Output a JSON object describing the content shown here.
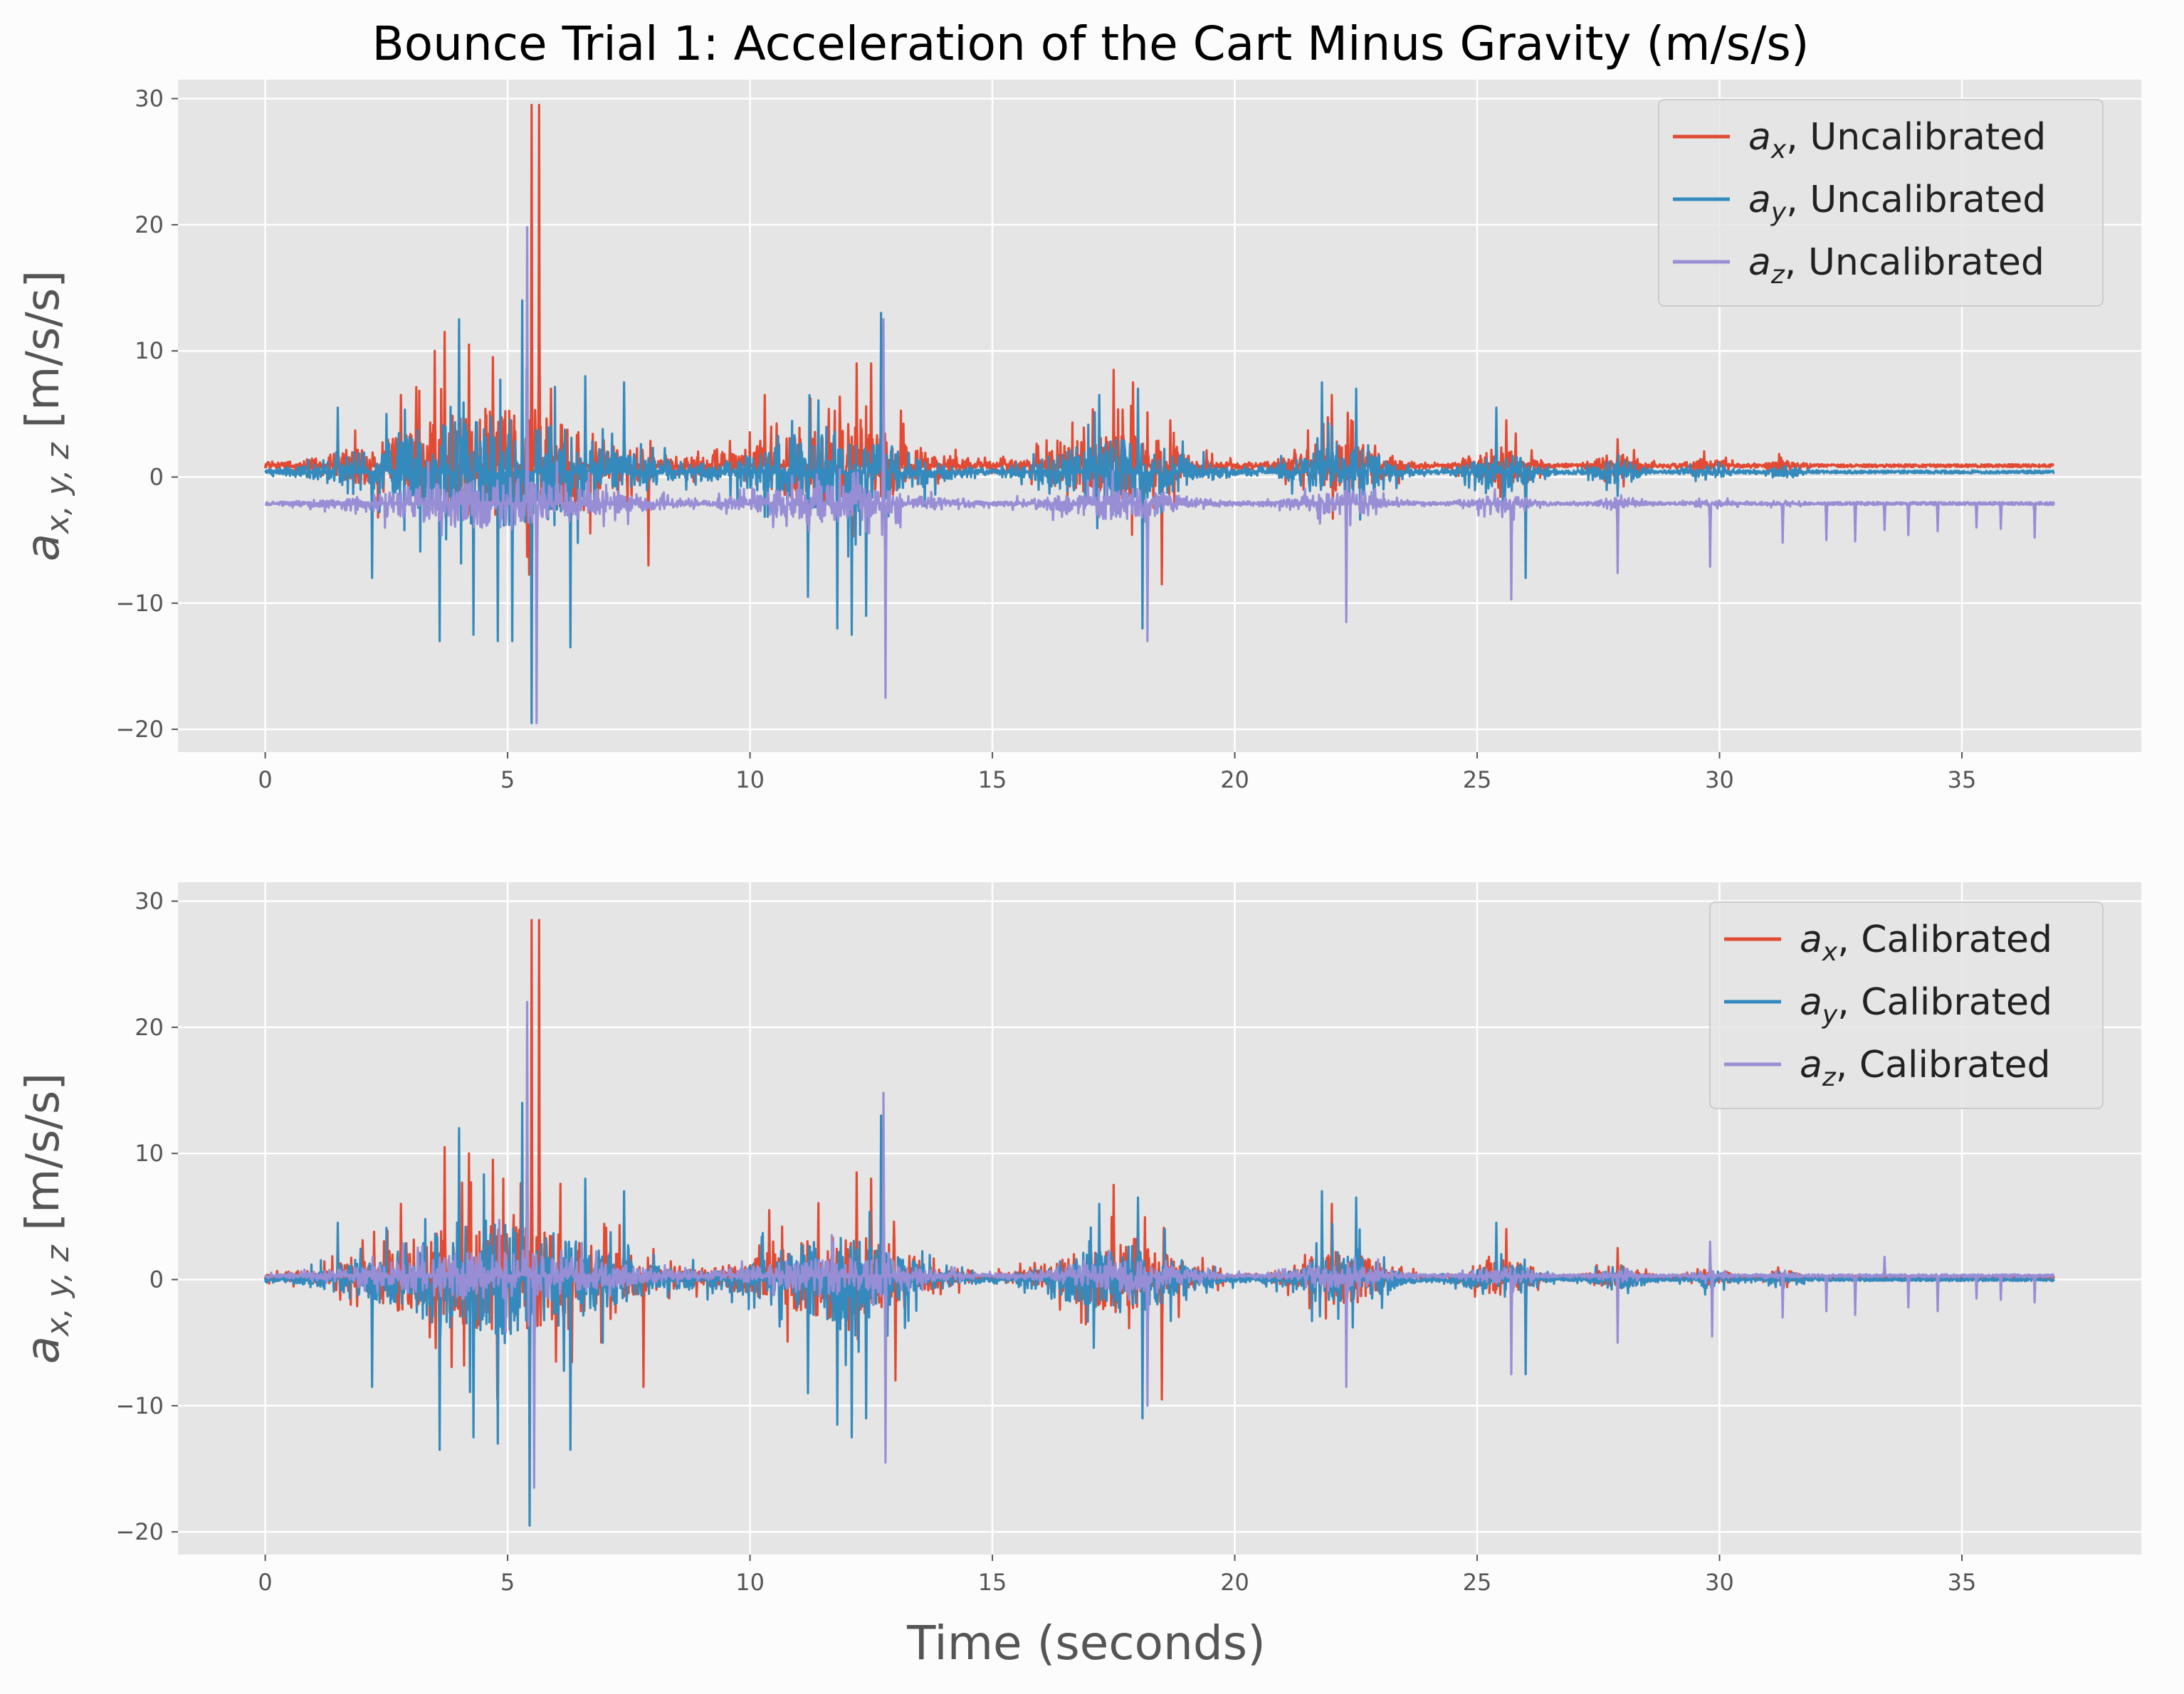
{
  "colors": {
    "figure_bg": "#fcfcfc",
    "axes_bg": "#e5e5e5",
    "grid": "#ffffff",
    "ax": "#e24a33",
    "ay": "#348abd",
    "az": "#988ed5"
  },
  "chart_data": [
    {
      "type": "line",
      "title": "Bounce Trial 1: Acceleration of the Cart Minus Gravity (m/s/s)",
      "xlabel": "",
      "ylabel": "a_{x,y,z} [m/s/s]",
      "xlim": [
        -1.8,
        38.7
      ],
      "ylim": [
        -21.8,
        31.5
      ],
      "xticks": [
        0,
        5,
        10,
        15,
        20,
        25,
        30,
        35
      ],
      "yticks": [
        -20,
        -10,
        0,
        10,
        20,
        30
      ],
      "ytick_labels": [
        "−20",
        "−10",
        "0",
        "10",
        "20",
        "30"
      ],
      "duration": 36.9,
      "legend": {
        "loc": "upper right",
        "entries": [
          ", Uncalibrated",
          ", Uncalibrated",
          ", Uncalibrated"
        ]
      },
      "series": [
        {
          "name": "a_x, Uncalibrated",
          "color_key": "ax",
          "baseline": 0.9,
          "noise": 0.12,
          "scale": 1.0,
          "spikes": [
            [
              2.8,
              6.5
            ],
            [
              3.5,
              10.0
            ],
            [
              3.7,
              11.5
            ],
            [
              4.2,
              10.5
            ],
            [
              4.7,
              9.5
            ],
            [
              5.5,
              29.5
            ],
            [
              5.65,
              29.5
            ],
            [
              5.9,
              7.0
            ],
            [
              7.9,
              -7.0
            ],
            [
              10.3,
              6.5
            ],
            [
              12.2,
              9.0
            ],
            [
              12.5,
              9.0
            ],
            [
              17.5,
              8.5
            ],
            [
              17.9,
              7.5
            ],
            [
              18.5,
              -8.5
            ],
            [
              22.0,
              6.5
            ],
            [
              22.4,
              4.5
            ],
            [
              25.6,
              4.5
            ],
            [
              27.9,
              3.0
            ]
          ]
        },
        {
          "name": "a_y, Uncalibrated",
          "color_key": "ay",
          "baseline": 0.4,
          "noise": 0.12,
          "scale": 1.0,
          "spikes": [
            [
              1.5,
              5.5
            ],
            [
              2.2,
              -8.0
            ],
            [
              2.5,
              5.0
            ],
            [
              3.6,
              -13.0
            ],
            [
              4.0,
              12.5
            ],
            [
              4.3,
              -12.5
            ],
            [
              4.8,
              -13.0
            ],
            [
              5.1,
              -13.0
            ],
            [
              5.3,
              14.0
            ],
            [
              5.5,
              -19.5
            ],
            [
              6.3,
              -13.5
            ],
            [
              6.6,
              8.0
            ],
            [
              7.4,
              7.5
            ],
            [
              11.2,
              -9.5
            ],
            [
              11.8,
              -12.0
            ],
            [
              12.1,
              -12.5
            ],
            [
              12.4,
              -11.0
            ],
            [
              12.7,
              13.0
            ],
            [
              17.2,
              6.5
            ],
            [
              18.0,
              7.0
            ],
            [
              18.1,
              -12.0
            ],
            [
              21.8,
              7.5
            ],
            [
              22.5,
              7.0
            ],
            [
              25.4,
              5.5
            ],
            [
              26.0,
              -8.0
            ],
            [
              27.9,
              -1.5
            ]
          ]
        },
        {
          "name": "a_z, Uncalibrated",
          "color_key": "az",
          "baseline": -2.1,
          "noise": 0.12,
          "scale": 0.45,
          "spikes": [
            [
              5.4,
              19.8
            ],
            [
              5.6,
              -19.5
            ],
            [
              12.75,
              12.5
            ],
            [
              12.8,
              -17.5
            ],
            [
              18.2,
              -13.0
            ],
            [
              22.3,
              -11.5
            ],
            [
              25.7,
              -9.7
            ],
            [
              27.9,
              -7.6
            ],
            [
              29.8,
              -7.1
            ],
            [
              31.3,
              -5.2
            ],
            [
              32.2,
              -5.0
            ],
            [
              32.8,
              -5.1
            ],
            [
              33.4,
              -4.2
            ],
            [
              33.9,
              -4.6
            ],
            [
              34.5,
              -4.3
            ],
            [
              35.3,
              -4.0
            ],
            [
              35.8,
              -4.1
            ],
            [
              36.5,
              -4.8
            ]
          ]
        }
      ]
    },
    {
      "type": "line",
      "title": "",
      "xlabel": "Time (seconds)",
      "ylabel": "a_{x,y,z} [m/s/s]",
      "xlim": [
        -1.8,
        38.7
      ],
      "ylim": [
        -21.8,
        31.5
      ],
      "xticks": [
        0,
        5,
        10,
        15,
        20,
        25,
        30,
        35
      ],
      "yticks": [
        -20,
        -10,
        0,
        10,
        20,
        30
      ],
      "ytick_labels": [
        "−20",
        "−10",
        "0",
        "10",
        "20",
        "30"
      ],
      "xtick_labels": [
        "0",
        "5",
        "10",
        "15",
        "20",
        "25",
        "30",
        "35"
      ],
      "duration": 36.9,
      "legend": {
        "loc": "upper right",
        "entries": [
          ", Calibrated",
          ", Calibrated",
          ", Calibrated"
        ]
      },
      "series": [
        {
          "name": "a_x, Calibrated",
          "color_key": "ax",
          "baseline": 0.2,
          "noise": 0.12,
          "scale": 1.0,
          "spikes": [
            [
              2.8,
              6.0
            ],
            [
              3.7,
              10.5
            ],
            [
              4.2,
              10.0
            ],
            [
              4.7,
              9.5
            ],
            [
              5.5,
              28.5
            ],
            [
              5.65,
              28.5
            ],
            [
              6.0,
              -6.5
            ],
            [
              7.8,
              -8.5
            ],
            [
              10.4,
              5.5
            ],
            [
              12.2,
              8.5
            ],
            [
              12.5,
              8.0
            ],
            [
              13.0,
              -8.0
            ],
            [
              17.5,
              7.5
            ],
            [
              18.5,
              -9.5
            ],
            [
              22.0,
              6.0
            ],
            [
              25.6,
              4.0
            ],
            [
              27.9,
              2.5
            ]
          ]
        },
        {
          "name": "a_y, Calibrated",
          "color_key": "ay",
          "baseline": 0.0,
          "noise": 0.12,
          "scale": 1.0,
          "spikes": [
            [
              1.5,
              4.5
            ],
            [
              2.2,
              -8.5
            ],
            [
              3.6,
              -13.5
            ],
            [
              4.0,
              12.0
            ],
            [
              4.3,
              -12.5
            ],
            [
              4.8,
              -13.0
            ],
            [
              5.3,
              14.0
            ],
            [
              5.45,
              -19.5
            ],
            [
              6.3,
              -13.5
            ],
            [
              6.6,
              8.0
            ],
            [
              7.4,
              7.0
            ],
            [
              11.2,
              -9.0
            ],
            [
              11.8,
              -11.5
            ],
            [
              12.1,
              -12.5
            ],
            [
              12.4,
              -11.0
            ],
            [
              12.7,
              13.0
            ],
            [
              17.2,
              6.0
            ],
            [
              18.0,
              6.5
            ],
            [
              18.1,
              -11.0
            ],
            [
              21.8,
              7.0
            ],
            [
              22.5,
              6.5
            ],
            [
              25.4,
              4.5
            ],
            [
              26.0,
              -7.5
            ]
          ]
        },
        {
          "name": "a_z, Calibrated",
          "color_key": "az",
          "baseline": 0.3,
          "noise": 0.12,
          "scale": 0.45,
          "spikes": [
            [
              5.4,
              22.0
            ],
            [
              5.55,
              -16.5
            ],
            [
              12.75,
              14.8
            ],
            [
              12.8,
              -14.5
            ],
            [
              18.2,
              -10.0
            ],
            [
              22.3,
              -8.5
            ],
            [
              25.7,
              -7.5
            ],
            [
              27.9,
              -5.0
            ],
            [
              29.8,
              3.0
            ],
            [
              29.85,
              -4.5
            ],
            [
              31.3,
              -3.0
            ],
            [
              32.2,
              -2.5
            ],
            [
              32.8,
              -2.8
            ],
            [
              33.4,
              1.8
            ],
            [
              33.9,
              -2.2
            ],
            [
              34.5,
              -2.5
            ],
            [
              35.3,
              -1.5
            ],
            [
              35.8,
              -1.6
            ],
            [
              36.5,
              -1.8
            ]
          ]
        }
      ]
    }
  ]
}
